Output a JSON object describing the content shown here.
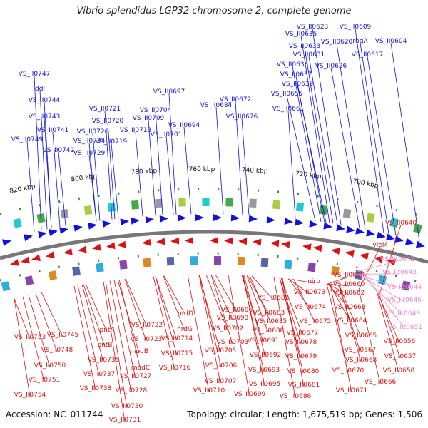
{
  "title": "Vibrio splendidus LGP32 chromosome 2, complete genome",
  "footer": {
    "accession": "Accession: NC_011744",
    "summary": "Topology: circular; Length: 1,675,519 bp; Genes: 1,506"
  },
  "ticks": [
    "700 kbp",
    "720 kbp",
    "740 kbp",
    "760 kbp",
    "780 kbp",
    "800 kbp",
    "820 kbp"
  ],
  "colors": {
    "forward": "#1111dd",
    "reverse": "#dd1111",
    "pseudo": "#ee88cc",
    "backbone": "#777777"
  },
  "labels_forward": [
    "VS_II0623",
    "VS_II0609",
    "VS_II0635",
    "VS_II0620",
    "rbgA",
    "VS_II0604",
    "VS_II0633",
    "VS_II0617",
    "VS_II0631",
    "VS_II0638",
    "VS_II0626",
    "VS_II0637",
    "VS_II0639",
    "VS_II0655",
    "VS_II0747",
    "ddl",
    "VS_II0744",
    "VS_II0743",
    "VS_II0741",
    "VS_II0749",
    "VS_II0742",
    "VS_II0734",
    "VS_II0729",
    "VS_II0726",
    "VS_II0721",
    "VS_II0720",
    "VS_II0719",
    "VS_II0713",
    "VS_II0709",
    "VS_II0704",
    "VS_II0701",
    "VS_II0697",
    "VS_II0694",
    "VS_II0684",
    "VS_II0672",
    "VS_II0676",
    "VS_II0661"
  ],
  "labels_reverse": [
    "VS_II0640",
    "yieM",
    "VS_II0659",
    "VS_II0660",
    "VS_II0662",
    "VS_II0663",
    "VS_II0664",
    "VS_II0665",
    "VS_II0667",
    "VS_II0668",
    "VS_II0670",
    "VS_II0671",
    "VS_II0666",
    "VS_II0656",
    "VS_II0657",
    "VS_II0658",
    "nirb",
    "VS_II0673",
    "VS_II0674",
    "VS_II0675",
    "VS_II0677",
    "VS_II0678",
    "VS_II0679",
    "VS_II0680",
    "VS_II0681",
    "VS_II0686",
    "VS_II0682",
    "VS_II0683",
    "VS_II0685",
    "VS_II0688",
    "VS_II0691",
    "VS_II0692",
    "VS_II0693",
    "VS_II0695",
    "VS_II0699",
    "VS_II0696",
    "VS_II0698",
    "VS_II0702",
    "VS_II0703",
    "VS_II0705",
    "VS_II0706",
    "VS_II0707",
    "VS_II0710",
    "nrdD",
    "nrdG",
    "VS_II0714",
    "VS_II0715",
    "VS_II0716",
    "VS_II0722",
    "VS_II0723",
    "modB",
    "modC",
    "VS_II0727",
    "VS_II0728",
    "VS_II0730",
    "VS_II0731",
    "pntA",
    "pntB",
    "VS_II0735",
    "VS_II0737",
    "VS_II0738",
    "VS_II0745",
    "VS_II0748",
    "VS_II0753",
    "VS_II0750",
    "VS_II0751",
    "VS_II0754"
  ],
  "labels_pseudo": [
    "VS_IIt0642",
    "VS_IIt0643",
    "VS_IIt0644",
    "VS_IIt0646",
    "VS_IIt0648",
    "VS_IIt0651"
  ]
}
